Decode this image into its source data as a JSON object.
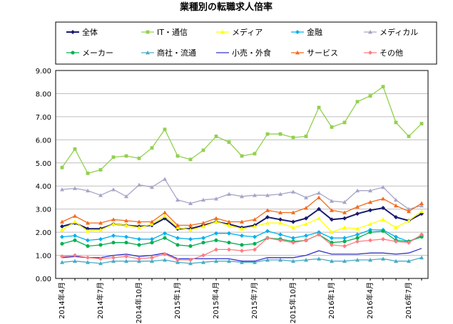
{
  "chart_data": {
    "type": "line",
    "title": "業種別の転職求人倍率",
    "ylim": [
      0,
      9
    ],
    "yticks": [
      "0.00",
      "1.00",
      "2.00",
      "3.00",
      "4.00",
      "5.00",
      "6.00",
      "7.00",
      "8.00",
      "9.00"
    ],
    "x_labels": [
      {
        "i": 0,
        "label": "2014年4月"
      },
      {
        "i": 3,
        "label": "2014年7月"
      },
      {
        "i": 6,
        "label": "2014年10月"
      },
      {
        "i": 9,
        "label": "2015年1月"
      },
      {
        "i": 12,
        "label": "2015年4月"
      },
      {
        "i": 15,
        "label": "2015年7月"
      },
      {
        "i": 18,
        "label": "2015年10月"
      },
      {
        "i": 21,
        "label": "2016年1月"
      },
      {
        "i": 24,
        "label": "2016年4月"
      },
      {
        "i": 27,
        "label": "2016年7月"
      }
    ],
    "grid": true,
    "legend_position": "top",
    "series": [
      {
        "name": "全体",
        "color": "#1a1a6e",
        "marker": "diamond",
        "values": [
          2.25,
          2.4,
          2.15,
          2.15,
          2.35,
          2.3,
          2.25,
          2.3,
          2.6,
          2.15,
          2.15,
          2.3,
          2.45,
          2.35,
          2.2,
          2.3,
          2.65,
          2.55,
          2.45,
          2.6,
          3.0,
          2.55,
          2.6,
          2.8,
          2.95,
          3.05,
          2.65,
          2.5,
          2.8
        ]
      },
      {
        "name": "IT・通信",
        "color": "#92d050",
        "marker": "square",
        "values": [
          4.8,
          5.6,
          4.55,
          4.7,
          5.25,
          5.3,
          5.2,
          5.65,
          6.45,
          5.3,
          5.15,
          5.55,
          6.15,
          5.9,
          5.3,
          5.4,
          6.25,
          6.25,
          6.1,
          6.15,
          7.4,
          6.55,
          6.75,
          7.65,
          7.9,
          8.3,
          6.75,
          6.15,
          6.7
        ]
      },
      {
        "name": "メディア",
        "color": "#ffff00",
        "marker": "triangle",
        "values": [
          2.1,
          2.45,
          2.05,
          2.1,
          2.35,
          2.3,
          2.2,
          2.35,
          2.7,
          2.2,
          2.1,
          2.25,
          2.45,
          2.3,
          2.15,
          2.25,
          2.4,
          2.4,
          2.2,
          2.35,
          2.6,
          2.0,
          2.2,
          2.15,
          2.35,
          2.55,
          2.2,
          2.5,
          2.9
        ]
      },
      {
        "name": "金融",
        "color": "#00b0f0",
        "marker": "diamond",
        "values": [
          1.8,
          1.85,
          1.65,
          1.7,
          1.85,
          1.8,
          1.7,
          1.7,
          1.95,
          1.75,
          1.7,
          1.75,
          1.95,
          1.95,
          1.85,
          1.8,
          2.05,
          1.9,
          1.75,
          1.85,
          2.0,
          1.75,
          1.75,
          1.9,
          2.1,
          2.1,
          1.8,
          1.6,
          1.85
        ]
      },
      {
        "name": "メディカル",
        "color": "#a6a6c8",
        "marker": "triangle",
        "values": [
          3.85,
          3.9,
          3.8,
          3.6,
          3.85,
          3.55,
          4.05,
          3.95,
          4.3,
          3.4,
          3.25,
          3.4,
          3.45,
          3.65,
          3.55,
          3.6,
          3.6,
          3.65,
          3.75,
          3.5,
          3.7,
          3.35,
          3.3,
          3.8,
          3.8,
          3.95,
          3.4,
          3.0,
          3.15
        ]
      },
      {
        "name": "メーカー",
        "color": "#00b050",
        "marker": "circle",
        "values": [
          1.5,
          1.65,
          1.4,
          1.45,
          1.55,
          1.55,
          1.45,
          1.55,
          1.75,
          1.45,
          1.4,
          1.55,
          1.65,
          1.55,
          1.45,
          1.5,
          1.75,
          1.7,
          1.6,
          1.65,
          1.9,
          1.55,
          1.6,
          1.75,
          2.0,
          2.05,
          1.65,
          1.6,
          1.8
        ]
      },
      {
        "name": "商社・流通",
        "color": "#4bacc6",
        "marker": "triangle",
        "values": [
          0.7,
          0.75,
          0.7,
          0.65,
          0.75,
          0.75,
          0.75,
          0.75,
          0.8,
          0.7,
          0.65,
          0.7,
          0.75,
          0.75,
          0.7,
          0.7,
          0.8,
          0.8,
          0.75,
          0.8,
          0.85,
          0.75,
          0.75,
          0.8,
          0.8,
          0.85,
          0.75,
          0.75,
          0.9
        ]
      },
      {
        "name": "小売・外食",
        "color": "#3333cc",
        "marker": "none",
        "values": [
          0.9,
          0.95,
          0.9,
          0.9,
          1.0,
          1.05,
          0.95,
          1.0,
          1.1,
          0.85,
          0.85,
          0.85,
          0.85,
          0.85,
          0.75,
          0.75,
          0.9,
          0.9,
          0.9,
          1.0,
          1.2,
          1.05,
          1.05,
          1.05,
          1.1,
          1.1,
          1.05,
          1.1,
          1.3
        ]
      },
      {
        "name": "サービス",
        "color": "#f26b1d",
        "marker": "triangle",
        "values": [
          2.45,
          2.7,
          2.4,
          2.4,
          2.55,
          2.5,
          2.45,
          2.45,
          2.85,
          2.3,
          2.3,
          2.4,
          2.6,
          2.45,
          2.45,
          2.55,
          2.95,
          2.85,
          2.85,
          3.05,
          3.5,
          2.95,
          2.85,
          3.1,
          3.3,
          3.45,
          3.15,
          2.9,
          3.25
        ]
      },
      {
        "name": "その他",
        "color": "#ff7c80",
        "marker": "diamond",
        "values": [
          0.95,
          1.0,
          0.9,
          0.85,
          0.9,
          0.95,
          0.85,
          0.9,
          1.05,
          0.8,
          0.8,
          1.0,
          1.25,
          1.25,
          1.2,
          1.25,
          1.75,
          1.65,
          1.55,
          1.65,
          1.9,
          1.45,
          1.4,
          1.6,
          1.65,
          1.7,
          1.6,
          1.55,
          1.9
        ]
      }
    ]
  }
}
